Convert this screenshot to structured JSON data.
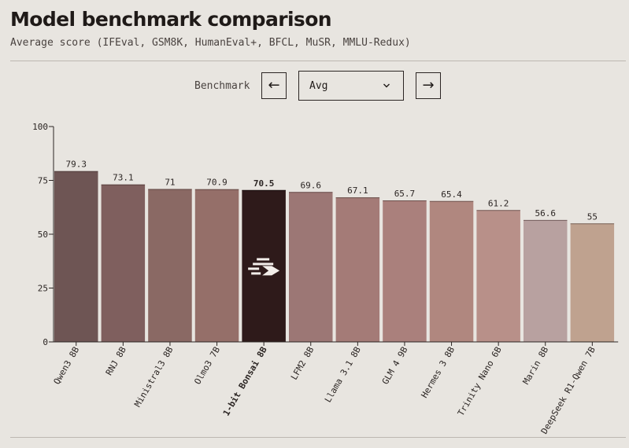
{
  "header": {
    "title": "Model benchmark comparison",
    "subtitle": "Average score (IFEval, GSM8K, HumanEval+, BFCL, MuSR, MMLU-Redux)"
  },
  "controls": {
    "label": "Benchmark",
    "prev_glyph": "←",
    "next_glyph": "→",
    "selected": "Avg"
  },
  "colors": {
    "highlight": "#2e1a1a",
    "bars": [
      "#6e5554",
      "#7f5f5e",
      "#8a6964",
      "#956f69",
      "#2e1a1a",
      "#9c7775",
      "#a47b77",
      "#aa807c",
      "#b0877f",
      "#b89089",
      "#b8a1a0",
      "#bfa28f"
    ]
  },
  "chart_data": {
    "type": "bar",
    "categories": [
      "Qwen3 8B",
      "RNJ 8B",
      "Ministral3 8B",
      "Olmo3 7B",
      "1-bit Bonsai 8B",
      "LFM2 8B",
      "Llama 3.1 8B",
      "GLM 4 9B",
      "Hermes 3 8B",
      "Trinity Nano 6B",
      "Marin 8B",
      "DeepSeek R1-Qwen 7B"
    ],
    "values": [
      79.3,
      73.1,
      71,
      70.9,
      70.5,
      69.6,
      67.1,
      65.7,
      65.4,
      61.2,
      56.6,
      55
    ],
    "value_labels": [
      "79.3",
      "73.1",
      "71",
      "70.9",
      "70.5",
      "69.6",
      "67.1",
      "65.7",
      "65.4",
      "61.2",
      "56.6",
      "55"
    ],
    "highlight": "1-bit Bonsai 8B",
    "ylim": [
      0,
      100
    ],
    "yticks": [
      0,
      25,
      50,
      75,
      100
    ],
    "grid": false,
    "title": "",
    "xlabel": "",
    "ylabel": ""
  }
}
